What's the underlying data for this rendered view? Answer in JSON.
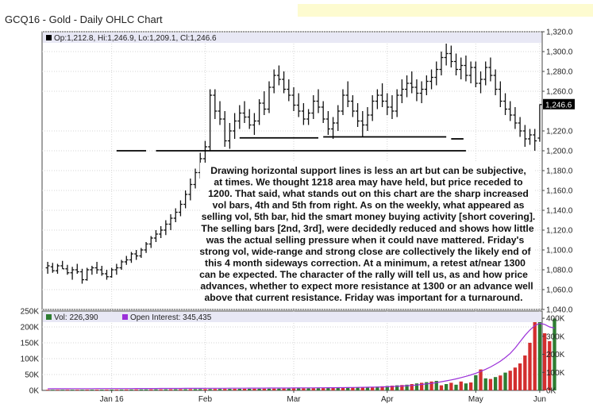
{
  "title": "GCQ16 - Gold - Daily OHLC Chart",
  "chart_data": [
    {
      "type": "ohlc",
      "symbol": "GCQ16",
      "legend": {
        "open_label": "Op:1,212.8",
        "high_label": "Hi:1,246.9",
        "low_label": "Lo:1,209.1",
        "close_label": "Cl:1,246.6"
      },
      "last_price_tag": "1,246.6",
      "last_price": 1246.6,
      "ylim": [
        1040,
        1320
      ],
      "yticks": [
        {
          "value": 1320,
          "label": "1,320.0"
        },
        {
          "value": 1300,
          "label": "1,300.0"
        },
        {
          "value": 1280,
          "label": "1,280.0"
        },
        {
          "value": 1260,
          "label": "1,260.0"
        },
        {
          "value": 1220,
          "label": "1,220.0"
        },
        {
          "value": 1200,
          "label": "1,200.0"
        },
        {
          "value": 1180,
          "label": "1,180.0"
        },
        {
          "value": 1160,
          "label": "1,160.0"
        },
        {
          "value": 1140,
          "label": "1,140.0"
        },
        {
          "value": 1120,
          "label": "1,120.0"
        },
        {
          "value": 1100,
          "label": "1,100.0"
        },
        {
          "value": 1080,
          "label": "1,080.0"
        },
        {
          "value": 1060,
          "label": "1,060.0"
        },
        {
          "value": 1040,
          "label": "1,040.0"
        }
      ],
      "support_lines": [
        {
          "from": 14,
          "to": 20,
          "value": 1200
        },
        {
          "from": 22,
          "to": 85,
          "value": 1200
        },
        {
          "from": 82,
          "to": 84.5,
          "value": 1212
        },
        {
          "from": 39,
          "to": 55,
          "value": 1213
        },
        {
          "from": 56,
          "to": 81,
          "value": 1214
        }
      ],
      "bars": [
        [
          1082,
          1088,
          1076,
          1084
        ],
        [
          1083,
          1087,
          1077,
          1079
        ],
        [
          1079,
          1086,
          1076,
          1084
        ],
        [
          1084,
          1089,
          1081,
          1081
        ],
        [
          1081,
          1085,
          1075,
          1077
        ],
        [
          1077,
          1083,
          1070,
          1080
        ],
        [
          1080,
          1086,
          1076,
          1078
        ],
        [
          1078,
          1081,
          1066,
          1070
        ],
        [
          1070,
          1082,
          1069,
          1080
        ],
        [
          1080,
          1084,
          1075,
          1082
        ],
        [
          1082,
          1088,
          1076,
          1080
        ],
        [
          1080,
          1084,
          1074,
          1076
        ],
        [
          1076,
          1080,
          1070,
          1073
        ],
        [
          1073,
          1082,
          1072,
          1080
        ],
        [
          1080,
          1086,
          1075,
          1082
        ],
        [
          1082,
          1090,
          1080,
          1088
        ],
        [
          1088,
          1094,
          1085,
          1090
        ],
        [
          1090,
          1098,
          1087,
          1096
        ],
        [
          1096,
          1100,
          1090,
          1094
        ],
        [
          1094,
          1102,
          1092,
          1100
        ],
        [
          1100,
          1108,
          1097,
          1106
        ],
        [
          1106,
          1114,
          1102,
          1112
        ],
        [
          1112,
          1120,
          1108,
          1116
        ],
        [
          1116,
          1124,
          1112,
          1120
        ],
        [
          1120,
          1130,
          1115,
          1126
        ],
        [
          1126,
          1136,
          1120,
          1132
        ],
        [
          1132,
          1142,
          1128,
          1138
        ],
        [
          1138,
          1150,
          1134,
          1146
        ],
        [
          1146,
          1160,
          1142,
          1156
        ],
        [
          1156,
          1172,
          1150,
          1166
        ],
        [
          1166,
          1182,
          1162,
          1178
        ],
        [
          1178,
          1198,
          1172,
          1192
        ],
        [
          1192,
          1210,
          1186,
          1204
        ],
        [
          1204,
          1262,
          1200,
          1256
        ],
        [
          1256,
          1262,
          1232,
          1240
        ],
        [
          1240,
          1250,
          1226,
          1232
        ],
        [
          1232,
          1240,
          1204,
          1210
        ],
        [
          1210,
          1228,
          1202,
          1220
        ],
        [
          1220,
          1238,
          1212,
          1230
        ],
        [
          1230,
          1246,
          1222,
          1238
        ],
        [
          1238,
          1250,
          1228,
          1234
        ],
        [
          1234,
          1242,
          1222,
          1226
        ],
        [
          1226,
          1238,
          1216,
          1230
        ],
        [
          1230,
          1252,
          1226,
          1248
        ],
        [
          1248,
          1260,
          1236,
          1242
        ],
        [
          1242,
          1270,
          1238,
          1264
        ],
        [
          1264,
          1282,
          1258,
          1276
        ],
        [
          1276,
          1286,
          1266,
          1272
        ],
        [
          1272,
          1280,
          1258,
          1262
        ],
        [
          1262,
          1272,
          1250,
          1256
        ],
        [
          1256,
          1264,
          1240,
          1246
        ],
        [
          1246,
          1258,
          1234,
          1240
        ],
        [
          1240,
          1248,
          1226,
          1232
        ],
        [
          1232,
          1242,
          1226,
          1238
        ],
        [
          1238,
          1256,
          1232,
          1250
        ],
        [
          1250,
          1262,
          1238,
          1244
        ],
        [
          1244,
          1250,
          1228,
          1232
        ],
        [
          1232,
          1240,
          1216,
          1222
        ],
        [
          1222,
          1234,
          1212,
          1228
        ],
        [
          1228,
          1246,
          1220,
          1240
        ],
        [
          1240,
          1262,
          1236,
          1256
        ],
        [
          1256,
          1270,
          1244,
          1250
        ],
        [
          1250,
          1256,
          1234,
          1240
        ],
        [
          1240,
          1248,
          1224,
          1230
        ],
        [
          1230,
          1240,
          1214,
          1226
        ],
        [
          1226,
          1244,
          1220,
          1236
        ],
        [
          1236,
          1256,
          1230,
          1250
        ],
        [
          1250,
          1262,
          1242,
          1256
        ],
        [
          1256,
          1268,
          1244,
          1250
        ],
        [
          1250,
          1258,
          1236,
          1244
        ],
        [
          1244,
          1256,
          1232,
          1240
        ],
        [
          1240,
          1262,
          1234,
          1256
        ],
        [
          1256,
          1272,
          1248,
          1262
        ],
        [
          1262,
          1276,
          1254,
          1268
        ],
        [
          1268,
          1280,
          1258,
          1264
        ],
        [
          1264,
          1272,
          1250,
          1258
        ],
        [
          1258,
          1270,
          1248,
          1262
        ],
        [
          1262,
          1276,
          1256,
          1270
        ],
        [
          1270,
          1282,
          1262,
          1274
        ],
        [
          1274,
          1290,
          1266,
          1282
        ],
        [
          1282,
          1300,
          1276,
          1294
        ],
        [
          1294,
          1308,
          1286,
          1298
        ],
        [
          1298,
          1306,
          1284,
          1290
        ],
        [
          1290,
          1298,
          1276,
          1282
        ],
        [
          1282,
          1294,
          1272,
          1286
        ],
        [
          1286,
          1296,
          1270,
          1276
        ],
        [
          1276,
          1290,
          1268,
          1284
        ],
        [
          1284,
          1290,
          1264,
          1268
        ],
        [
          1268,
          1280,
          1258,
          1272
        ],
        [
          1272,
          1290,
          1266,
          1284
        ],
        [
          1284,
          1294,
          1270,
          1276
        ],
        [
          1276,
          1282,
          1256,
          1262
        ],
        [
          1262,
          1270,
          1244,
          1250
        ],
        [
          1250,
          1258,
          1236,
          1242
        ],
        [
          1242,
          1250,
          1230,
          1236
        ],
        [
          1236,
          1244,
          1222,
          1228
        ],
        [
          1228,
          1234,
          1214,
          1220
        ],
        [
          1220,
          1226,
          1204,
          1212
        ],
        [
          1212,
          1222,
          1206,
          1216
        ],
        [
          1216,
          1222,
          1200,
          1210
        ],
        [
          1212.8,
          1246.9,
          1209.1,
          1246.6
        ]
      ]
    },
    {
      "type": "bar",
      "panel": "volume",
      "legend_volume": "Vol: 226,390",
      "legend_open_interest": "Open Interest: 345,435",
      "ylim": [
        0,
        250000
      ],
      "left_ticks": [
        "250K",
        "200K",
        "150K",
        "100K",
        "50K",
        "0K"
      ],
      "right_ticks": [
        "400K",
        "300K",
        "200K",
        "100K",
        "0K"
      ],
      "x_labels": [
        {
          "label": "Jan 16",
          "index": 13
        },
        {
          "label": "Feb",
          "index": 32
        },
        {
          "label": "Mar",
          "index": 50
        },
        {
          "label": "Apr",
          "index": 69
        },
        {
          "label": "May",
          "index": 87
        },
        {
          "label": "Jun",
          "index": 100
        }
      ],
      "volume": [
        2000,
        2000,
        2100,
        2100,
        2200,
        2200,
        2300,
        2300,
        2400,
        2400,
        2500,
        2500,
        2600,
        2600,
        2700,
        2700,
        2800,
        2900,
        3000,
        3000,
        3100,
        3200,
        3300,
        3300,
        3400,
        3500,
        3600,
        3700,
        3800,
        3900,
        4000,
        4100,
        4200,
        4300,
        4400,
        4500,
        4600,
        4700,
        4800,
        4900,
        5000,
        5100,
        5200,
        5300,
        5400,
        5500,
        5600,
        5700,
        5800,
        5900,
        6000,
        6200,
        6400,
        6600,
        6800,
        7000,
        7200,
        7400,
        7600,
        7800,
        8000,
        8500,
        9000,
        9500,
        10000,
        10500,
        11000,
        12000,
        13000,
        14000,
        15000,
        16000,
        17000,
        18000,
        20000,
        22000,
        24000,
        26000,
        28000,
        30000,
        16000,
        20000,
        24000,
        18000,
        28000,
        22000,
        25000,
        48000,
        66000,
        38000,
        36000,
        42000,
        47000,
        56000,
        62000,
        72000,
        85000,
        110000,
        150000,
        215000,
        225000,
        180000,
        155000,
        226390
      ],
      "volume_up": [
        false,
        true,
        false,
        true,
        false,
        true,
        false,
        true,
        false,
        true,
        false,
        true,
        false,
        true,
        false,
        true,
        false,
        true,
        false,
        true,
        true,
        false,
        true,
        false,
        true,
        false,
        true,
        false,
        true,
        false,
        true,
        true,
        false,
        true,
        false,
        true,
        false,
        true,
        false,
        true,
        false,
        true,
        false,
        true,
        false,
        true,
        false,
        true,
        false,
        true,
        false,
        true,
        false,
        true,
        false,
        true,
        false,
        true,
        false,
        true,
        false,
        true,
        false,
        true,
        false,
        true,
        false,
        true,
        false,
        true,
        false,
        true,
        false,
        true,
        false,
        true,
        false,
        true,
        false,
        true,
        false,
        true,
        false,
        true,
        false,
        true,
        false,
        true,
        false,
        true,
        false,
        true,
        false,
        true,
        false,
        false,
        false,
        false,
        false,
        false,
        true,
        false,
        false,
        true
      ],
      "open_interest": [
        9000,
        9100,
        9200,
        9300,
        9400,
        9500,
        9600,
        9700,
        9800,
        9900,
        10000,
        10000,
        10100,
        10100,
        10200,
        10200,
        10300,
        10300,
        10400,
        10400,
        10500,
        10600,
        10700,
        10800,
        10900,
        11000,
        11100,
        11200,
        11300,
        11400,
        11500,
        11600,
        11700,
        11800,
        11900,
        12000,
        12100,
        12200,
        12300,
        12400,
        12500,
        12600,
        12700,
        12800,
        12900,
        13000,
        13100,
        13200,
        13300,
        13400,
        13500,
        13700,
        13900,
        14100,
        14300,
        14500,
        14700,
        14900,
        15100,
        15300,
        15500,
        15900,
        16300,
        16700,
        17100,
        17500,
        17900,
        18500,
        19300,
        20300,
        21500,
        22800,
        24200,
        25800,
        27500,
        30000,
        33000,
        36000,
        39000,
        43000,
        48000,
        53000,
        58000,
        64000,
        71000,
        78000,
        86000,
        95000,
        105000,
        117000,
        130000,
        145000,
        162000,
        182000,
        205000,
        235000,
        270000,
        305000,
        335000,
        360000,
        372000,
        366000,
        352000,
        345435
      ]
    }
  ],
  "annotation": {
    "lines": [
      "Drawing horizontal support lines is less an art but can be subjective,",
      "at times.  We thought 1218 area may have held, but price receded to",
      "1200.  That said, what stands out on this chart are the sharp increased",
      "vol bars, 4th and 5th from right.  As on the weekly, what appeared as",
      "selling vol, 5th bar, hid the smart money buying activity [short covering].",
      "The selling bars [2nd, 3rd], were decidedly reduced and shows how little",
      "was the actual selling pressure when it could nave mattered.  Friday's",
      "strong vol, wide-range and strong close are collectively the likely end of",
      "this 4 month sideways correction.  At a minimum, a retest at/near 1300",
      "can be expected.  The character of the rally will tell us, as and how price",
      "advances, whether to expect more resistance at 1300 or an advance well",
      "above that current resistance.  Friday was important for a turnaround."
    ]
  },
  "colors": {
    "price_bar": "#111111",
    "support_line": "#000000",
    "volume_up": "#2e7d32",
    "volume_down": "#d32f2f",
    "open_interest": "#9b30d9",
    "legend_bg": "#e8e8f5",
    "annotation_bg": "#ffffff",
    "last_tag_bg": "#000000",
    "grid": "#d6d6d6",
    "frame": "#444444",
    "note_strip": "#fdfbd0"
  }
}
